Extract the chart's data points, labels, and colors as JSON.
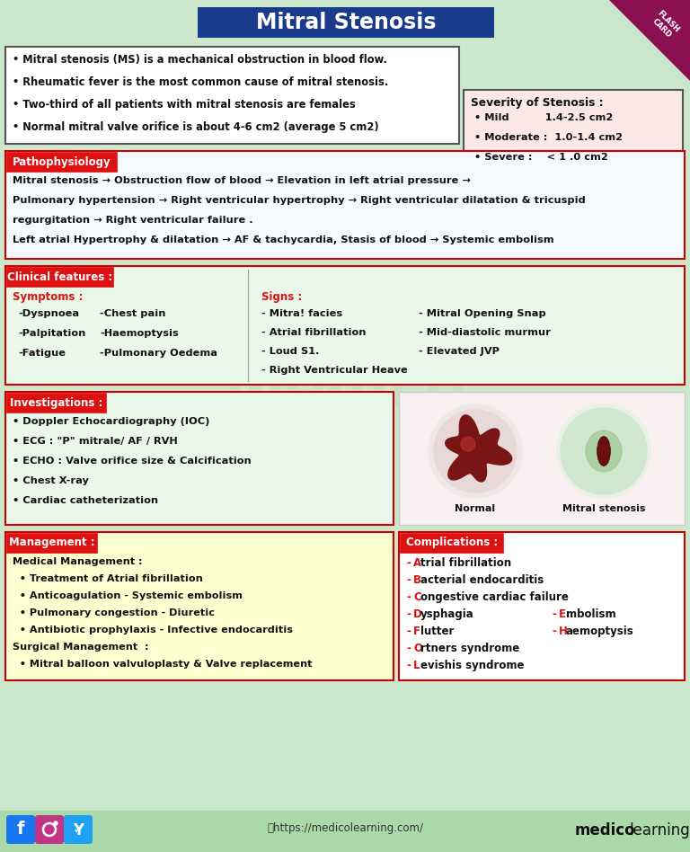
{
  "title": "Mitral Stenosis",
  "title_bg": "#1a3a8c",
  "title_color": "#ffffff",
  "bg_color": "#cce8cc",
  "intro_bullets": [
    "• Mitral stenosis (MS) is a mechanical obstruction in blood flow.",
    "• Rheumatic fever is the most common cause of mitral stenosis.",
    "• Two-third of all patients with mitral stenosis are females",
    "• Normal mitral valve orifice is about 4-6 cm2 (average 5 cm2)"
  ],
  "severity_title": "Severity of Stenosis :",
  "severity_items": [
    "• Mild          1.4-2.5 cm2",
    "• Moderate :  1.0-1.4 cm2",
    "• Severe :    < 1 .0 cm2"
  ],
  "severity_bg": "#fde8e8",
  "patho_label": "Pathophysiology",
  "patho_label_bg": "#dd1111",
  "patho_label_color": "#ffffff",
  "patho_lines": [
    "Mitral stenosis → Obstruction flow of blood → Elevation in left atrial pressure →",
    "Pulmonary hypertension → Right ventricular hypertrophy → Right ventricular dilatation & tricuspid",
    "regurgitation → Right ventricular failure .",
    "Left atrial Hypertrophy & dilatation → AF & tachycardia, Stasis of blood → Systemic embolism"
  ],
  "patho_bg": "#f5faff",
  "clinical_label": "Clinical features :",
  "clinical_label_bg": "#dd1111",
  "clinical_label_color": "#ffffff",
  "clinical_bg": "#eaf8ea",
  "symptoms_title": "Symptoms :",
  "symptoms_color": "#dd1111",
  "symptoms_col1": [
    "-Dyspnoea",
    "-Palpitation",
    "-Fatigue"
  ],
  "symptoms_col2": [
    "-Chest pain",
    "-Haemoptysis",
    "-Pulmonary Oedema"
  ],
  "signs_title": "Signs :",
  "signs_col1": [
    "- Mitra! facies",
    "- Atrial fibrillation",
    "- Loud S1.",
    "- Right Ventricular Heave"
  ],
  "signs_col2": [
    "- Mitral Opening Snap",
    "- Mid-diastolic murmur",
    "- Elevated JVP",
    ""
  ],
  "invest_label": "Investigations :",
  "invest_label_bg": "#dd1111",
  "invest_label_color": "#ffffff",
  "invest_bg": "#eaf8ea",
  "invest_bullets": [
    "• Doppler Echocardiography (IOC)",
    "• ECG : \"P\" mitrale/ AF / RVH",
    "• ECHO : Valve orifice size & Calcification",
    "• Chest X-ray",
    "• Cardiac catheterization"
  ],
  "mgmt_label": "Management :",
  "mgmt_label_bg": "#dd1111",
  "mgmt_label_color": "#ffffff",
  "mgmt_bg": "#fdffd0",
  "mgmt_lines": [
    "Medical Management :",
    "  • Treatment of Atrial fibrillation",
    "  • Anticoagulation - Systemic embolism",
    "  • Pulmonary congestion - Diuretic",
    "  • Antibiotic prophylaxis - Infective endocarditis",
    "Surgical Management  :",
    "  • Mitral balloon valvuloplasty & Valve replacement"
  ],
  "comp_label": "Complications :",
  "comp_label_bg": "#dd1111",
  "comp_label_color": "#ffffff",
  "comp_bg": "#ffffff",
  "comp_col1": [
    "-Atrial fibrillation",
    "-Bacterial endocarditis",
    "-Congestive cardiac failure",
    "-Dysphagia",
    "-Flutter",
    "-Ortners syndrome",
    "-Levishis syndrome"
  ],
  "comp_col2": [
    "",
    "",
    "",
    "-Embolism",
    "-Haemoptysis",
    "",
    ""
  ],
  "footer_bg": "#aadaaa",
  "footer_url": "ⓘhttps://medicolearning.com/",
  "footer_brand1": "medico",
  "footer_brand2": "learning",
  "text_color": "#111111",
  "border_dark": "#333333"
}
